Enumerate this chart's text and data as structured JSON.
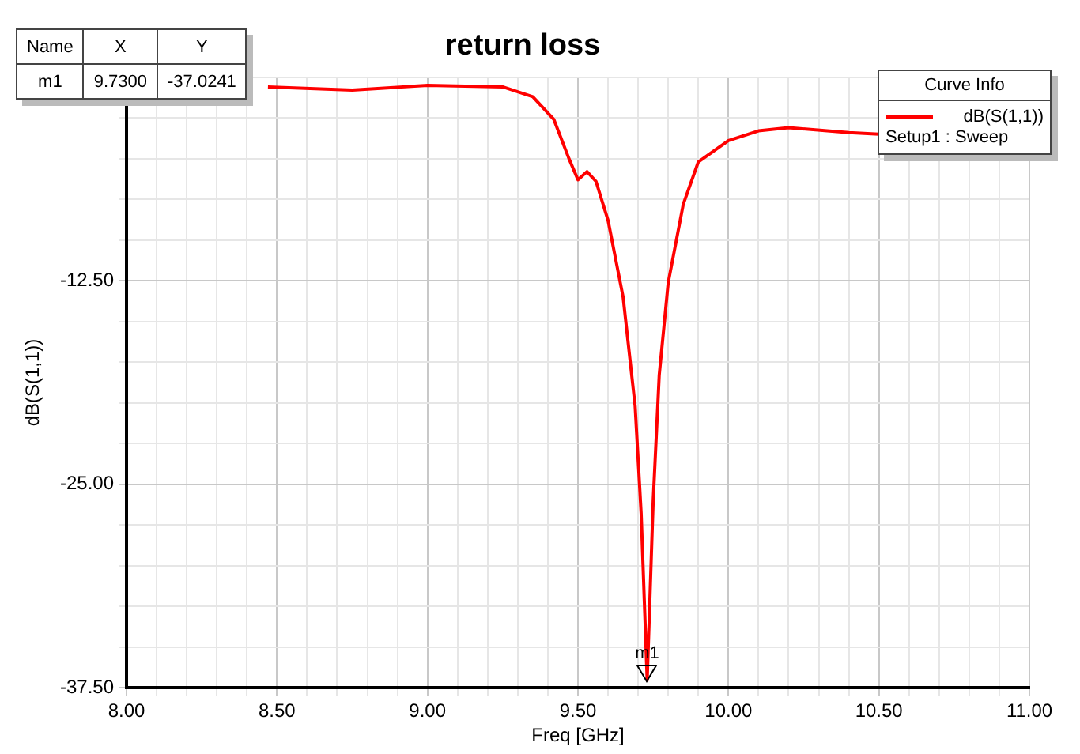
{
  "chart_data": {
    "type": "line",
    "title": "return loss",
    "xlabel": "Freq [GHz]",
    "ylabel": "dB(S(1,1))",
    "legend_title": "Curve Info",
    "legend": "top right",
    "grid": true,
    "marker": "none",
    "line_style": "solid",
    "xlim": [
      8,
      11
    ],
    "ylim": [
      -37.5,
      0
    ],
    "xticks": [
      {
        "value": 8,
        "label": "8.00"
      },
      {
        "value": 8.1,
        "label": null
      },
      {
        "value": 8.2,
        "label": null
      },
      {
        "value": 8.3,
        "label": null
      },
      {
        "value": 8.4,
        "label": null
      },
      {
        "value": 8.5,
        "label": "8.50"
      },
      {
        "value": 8.6,
        "label": null
      },
      {
        "value": 8.7,
        "label": null
      },
      {
        "value": 8.8,
        "label": null
      },
      {
        "value": 8.9,
        "label": null
      },
      {
        "value": 9,
        "label": "9.00"
      },
      {
        "value": 9.1,
        "label": null
      },
      {
        "value": 9.2,
        "label": null
      },
      {
        "value": 9.3,
        "label": null
      },
      {
        "value": 9.4,
        "label": null
      },
      {
        "value": 9.5,
        "label": "9.50"
      },
      {
        "value": 9.6,
        "label": null
      },
      {
        "value": 9.7,
        "label": null
      },
      {
        "value": 9.8,
        "label": null
      },
      {
        "value": 9.9,
        "label": null
      },
      {
        "value": 10,
        "label": "10.00"
      },
      {
        "value": 10.1,
        "label": null
      },
      {
        "value": 10.2,
        "label": null
      },
      {
        "value": 10.3,
        "label": null
      },
      {
        "value": 10.4,
        "label": null
      },
      {
        "value": 10.5,
        "label": "10.50"
      },
      {
        "value": 10.6,
        "label": null
      },
      {
        "value": 10.7,
        "label": null
      },
      {
        "value": 10.8,
        "label": null
      },
      {
        "value": 10.9,
        "label": null
      },
      {
        "value": 11,
        "label": "11.00"
      }
    ],
    "yticks": [
      {
        "value": -37.5,
        "label": "-37.50"
      },
      {
        "value": -35,
        "label": null
      },
      {
        "value": -32.5,
        "label": null
      },
      {
        "value": -30,
        "label": null
      },
      {
        "value": -27.5,
        "label": null
      },
      {
        "value": -25,
        "label": "-25.00"
      },
      {
        "value": -22.5,
        "label": null
      },
      {
        "value": -20,
        "label": null
      },
      {
        "value": -17.5,
        "label": null
      },
      {
        "value": -15,
        "label": null
      },
      {
        "value": -12.5,
        "label": "-12.50"
      },
      {
        "value": -10,
        "label": null
      },
      {
        "value": -7.5,
        "label": null
      },
      {
        "value": -5,
        "label": null
      },
      {
        "value": -2.5,
        "label": null
      },
      {
        "value": 0,
        "label": null
      }
    ],
    "series": [
      {
        "name": "dB(S(1,1))",
        "color": "#ff0000",
        "x": [
          8.47,
          8.75,
          9,
          9.25,
          9.35,
          9.42,
          9.47,
          9.5,
          9.53,
          9.56,
          9.6,
          9.65,
          9.69,
          9.71,
          9.73,
          9.75,
          9.77,
          9.8,
          9.85,
          9.9,
          10,
          10.1,
          10.2,
          10.4,
          10.5
        ],
        "values": [
          -0.6,
          -0.8,
          -0.5,
          -0.6,
          -1.2,
          -2.6,
          -5,
          -6.3,
          -5.8,
          -6.4,
          -8.8,
          -13.5,
          -20.2,
          -26.8,
          -37.0241,
          -26,
          -18.3,
          -12.6,
          -7.8,
          -5.2,
          -3.9,
          -3.3,
          -3.1,
          -3.4,
          -3.5
        ]
      }
    ],
    "annotations": [
      {
        "text": "m1",
        "x": 9.73,
        "y": -37.0241
      },
      "Setup1 : Sweep",
      "Name",
      "X",
      "Y",
      "m1",
      "9.7300",
      "-37.0241"
    ]
  }
}
